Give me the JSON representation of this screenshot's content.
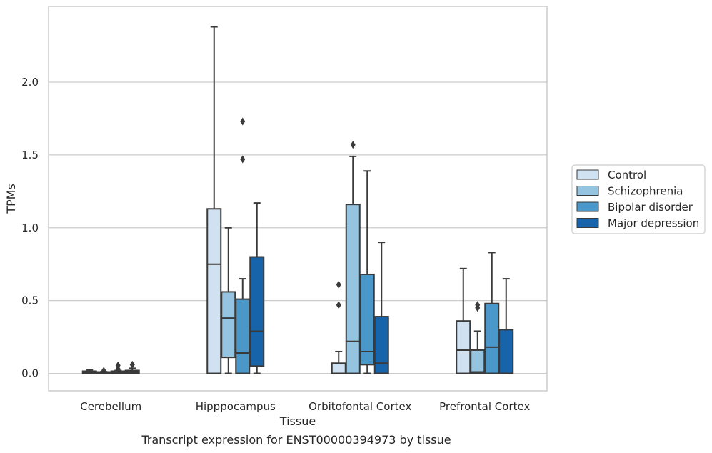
{
  "chart_data": {
    "type": "boxplot",
    "xlabel": "Tissue",
    "ylabel": "TPMs",
    "caption": "Transcript expression for ENST00000394973 by tissue",
    "ylim": [
      -0.12,
      2.52
    ],
    "yticks": [
      "0.0",
      "0.5",
      "1.0",
      "1.5",
      "2.0"
    ],
    "grid": "horizontal",
    "legend_placement": "right",
    "categories": [
      "Cerebellum",
      "Hipppocampus",
      "Orbitofontal Cortex",
      "Prefrontal Cortex"
    ],
    "series": [
      {
        "name": "Control",
        "color": "#d0e1f2",
        "boxes": [
          {
            "whislo": 0.0,
            "q1": 0.0,
            "med": 0.005,
            "q3": 0.015,
            "whishi": 0.025,
            "fliers": []
          },
          {
            "whislo": 0.0,
            "q1": 0.0,
            "med": 0.75,
            "q3": 1.13,
            "whishi": 2.38,
            "fliers": []
          },
          {
            "whislo": 0.0,
            "q1": 0.0,
            "med": 0.0,
            "q3": 0.07,
            "whishi": 0.15,
            "fliers": [
              0.47,
              0.61
            ]
          },
          {
            "whislo": 0.0,
            "q1": 0.0,
            "med": 0.16,
            "q3": 0.36,
            "whishi": 0.72,
            "fliers": []
          }
        ]
      },
      {
        "name": "Schizophrenia",
        "color": "#94c4df",
        "boxes": [
          {
            "whislo": 0.0,
            "q1": 0.0,
            "med": 0.003,
            "q3": 0.01,
            "whishi": 0.012,
            "fliers": [
              0.018
            ]
          },
          {
            "whislo": 0.0,
            "q1": 0.11,
            "med": 0.38,
            "q3": 0.56,
            "whishi": 1.0,
            "fliers": []
          },
          {
            "whislo": 0.0,
            "q1": 0.0,
            "med": 0.22,
            "q3": 1.16,
            "whishi": 1.49,
            "fliers": [
              1.57
            ]
          },
          {
            "whislo": 0.0,
            "q1": 0.0,
            "med": 0.01,
            "q3": 0.16,
            "whishi": 0.29,
            "fliers": [
              0.45,
              0.47
            ]
          }
        ]
      },
      {
        "name": "Bipolar disorder",
        "color": "#4a98c9",
        "boxes": [
          {
            "whislo": 0.0,
            "q1": 0.0,
            "med": 0.006,
            "q3": 0.015,
            "whishi": 0.02,
            "fliers": [
              0.03,
              0.055
            ]
          },
          {
            "whislo": 0.0,
            "q1": 0.0,
            "med": 0.14,
            "q3": 0.51,
            "whishi": 0.65,
            "fliers": [
              1.47,
              1.73
            ]
          },
          {
            "whislo": 0.0,
            "q1": 0.06,
            "med": 0.15,
            "q3": 0.68,
            "whishi": 1.39,
            "fliers": []
          },
          {
            "whislo": 0.0,
            "q1": 0.0,
            "med": 0.18,
            "q3": 0.48,
            "whishi": 0.83,
            "fliers": []
          }
        ]
      },
      {
        "name": "Major depression",
        "color": "#1764ab",
        "boxes": [
          {
            "whislo": 0.0,
            "q1": 0.0,
            "med": 0.01,
            "q3": 0.02,
            "whishi": 0.035,
            "fliers": [
              0.06
            ]
          },
          {
            "whislo": 0.0,
            "q1": 0.05,
            "med": 0.29,
            "q3": 0.8,
            "whishi": 1.17,
            "fliers": []
          },
          {
            "whislo": 0.0,
            "q1": 0.0,
            "med": 0.07,
            "q3": 0.39,
            "whishi": 0.9,
            "fliers": []
          },
          {
            "whislo": 0.0,
            "q1": 0.0,
            "med": 0.0,
            "q3": 0.3,
            "whishi": 0.65,
            "fliers": []
          }
        ]
      }
    ]
  }
}
